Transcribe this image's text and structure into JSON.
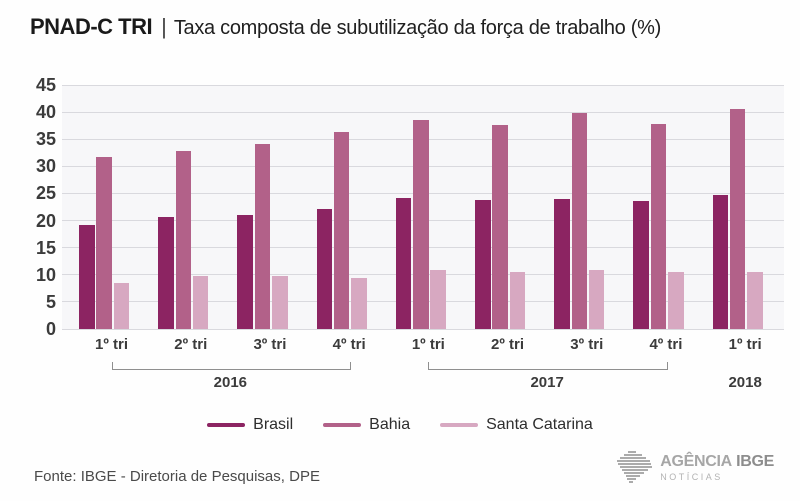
{
  "header": {
    "title_bold": "PNAD-C TRI",
    "separator": "|",
    "title_rest": "Taxa composta de subutilização da força de trabalho (%)"
  },
  "chart_data": {
    "type": "bar",
    "title": "PNAD-C TRI | Taxa composta de subutilização da força de trabalho (%)",
    "categories": [
      "1º tri",
      "2º tri",
      "3º tri",
      "4º tri",
      "1º tri",
      "2º tri",
      "3º tri",
      "4º tri",
      "1º tri"
    ],
    "year_groups": [
      {
        "label": "2016",
        "from": 0,
        "to": 3,
        "bracket": true
      },
      {
        "label": "2017",
        "from": 4,
        "to": 7,
        "bracket": true
      },
      {
        "label": "2018",
        "from": 8,
        "to": 8,
        "bracket": false
      }
    ],
    "series": [
      {
        "name": "Brasil",
        "color": "#8c2462",
        "values": [
          19.2,
          20.7,
          21.1,
          22.2,
          24.1,
          23.8,
          23.9,
          23.6,
          24.7
        ]
      },
      {
        "name": "Bahia",
        "color": "#b26189",
        "values": [
          31.7,
          32.9,
          34.1,
          36.3,
          38.6,
          37.7,
          39.9,
          37.8,
          40.6
        ]
      },
      {
        "name": "Santa Catarina",
        "color": "#d7a8c1",
        "values": [
          8.5,
          9.8,
          9.8,
          9.4,
          10.9,
          10.6,
          10.9,
          10.6,
          10.5
        ]
      }
    ],
    "ylim": [
      0,
      45
    ],
    "yticks": [
      0,
      5,
      10,
      15,
      20,
      25,
      30,
      35,
      40,
      45
    ],
    "grid": "horizontal",
    "legend_position": "bottom",
    "xlabel": "",
    "ylabel": ""
  },
  "footer": {
    "source": "Fonte: IBGE - Diretoria de Pesquisas, DPE"
  },
  "logo": {
    "agencia": "AGÊNCIA",
    "ibge": "IBGE",
    "noticias": "NOTÍCIAS"
  }
}
